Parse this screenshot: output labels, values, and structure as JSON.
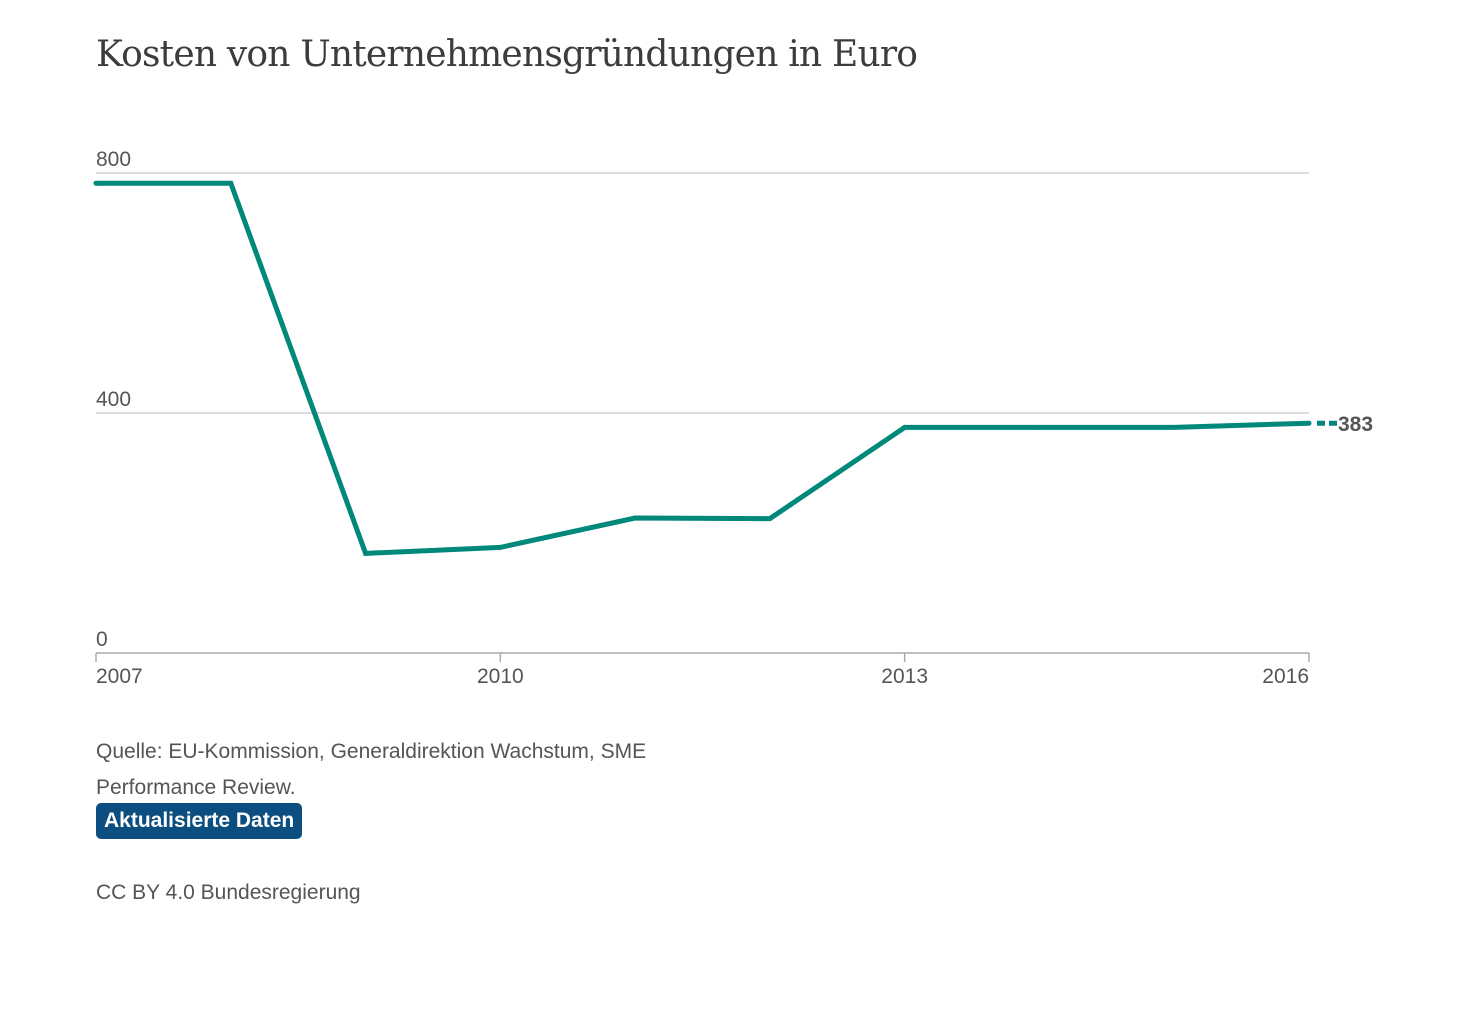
{
  "chart_data": {
    "type": "line",
    "title": "Kosten von Unternehmensgründungen in Euro",
    "xlabel": "",
    "ylabel": "",
    "x": [
      2007,
      2008,
      2009,
      2010,
      2011,
      2012,
      2013,
      2014,
      2015,
      2016
    ],
    "series": [
      {
        "values": [
          783,
          783,
          166,
          176,
          225,
          224,
          376,
          376,
          376,
          383
        ],
        "color": "#00887a"
      }
    ],
    "y_ticks": [
      "0",
      "400",
      "800"
    ],
    "x_ticks": [
      "2007",
      "2010",
      "2013",
      "2016"
    ],
    "ylim": [
      0,
      800
    ],
    "xlim": [
      2007,
      2016
    ],
    "end_value_label": "383",
    "grid": true,
    "legend": "none"
  },
  "footer": {
    "source_text": "Quelle: EU-Kommission, Generaldirektion Wachstum, SME Performance Review.",
    "update_button_label": "Aktualisierte Daten",
    "license_text": "CC BY 4.0 Bundesregierung"
  },
  "colors": {
    "line": "#00887a",
    "gridline": "#d0d0d0",
    "axis": "#aaaaaa",
    "button_bg": "#0b4e7f",
    "text": "#555555"
  }
}
